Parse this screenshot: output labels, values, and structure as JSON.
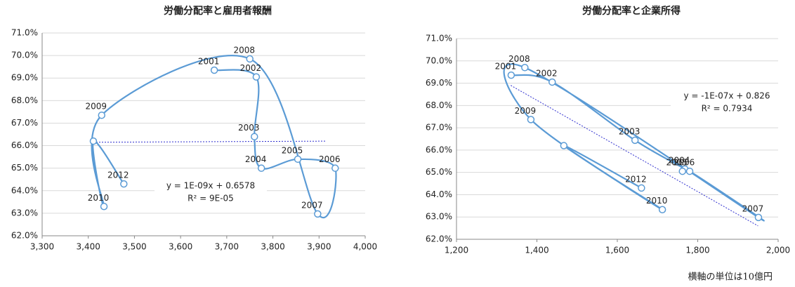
{
  "chart_data": [
    {
      "type": "scatter",
      "title": "労働分配率と雇用者報酬",
      "categories": [
        "2001",
        "2002",
        "2003",
        "2004",
        "2005",
        "2006",
        "2007",
        "2008",
        "2009",
        "2010",
        null,
        "2012"
      ],
      "x": [
        3673,
        3764,
        3760,
        3775,
        3854,
        3935,
        3897,
        3750,
        3429,
        3434,
        3411,
        3477
      ],
      "values": [
        69.35,
        69.05,
        66.4,
        65.0,
        65.4,
        65.0,
        62.97,
        69.85,
        67.35,
        63.3,
        66.2,
        64.3
      ],
      "color": "#5b9bd5",
      "trendline": {
        "x": [
          3405,
          3915
        ],
        "values": [
          66.15,
          66.2
        ],
        "color": "#2f2fcf"
      },
      "annotations": [
        "y = 1E-09x + 0.6578",
        "R² = 9E-05"
      ],
      "xlim": [
        3300,
        4000
      ],
      "xticks": [
        {
          "value": 3300,
          "label": "3,300"
        },
        {
          "value": 3400,
          "label": "3,400"
        },
        {
          "value": 3500,
          "label": "3,500"
        },
        {
          "value": 3600,
          "label": "3,600"
        },
        {
          "value": 3700,
          "label": "3,700"
        },
        {
          "value": 3800,
          "label": "3,800"
        },
        {
          "value": 3900,
          "label": "3,900"
        },
        {
          "value": 4000,
          "label": "4,000"
        }
      ],
      "ylim": [
        62,
        71
      ],
      "yticks": [
        {
          "value": 62,
          "label": "62.0%"
        },
        {
          "value": 63,
          "label": "63.0%"
        },
        {
          "value": 64,
          "label": "64.0%"
        },
        {
          "value": 65,
          "label": "65.0%"
        },
        {
          "value": 66,
          "label": "66.0%"
        },
        {
          "value": 67,
          "label": "67.0%"
        },
        {
          "value": 68,
          "label": "68.0%"
        },
        {
          "value": 69,
          "label": "69.0%"
        },
        {
          "value": 70,
          "label": "70.0%"
        },
        {
          "value": 71,
          "label": "71.0%"
        }
      ],
      "grid": true
    },
    {
      "type": "scatter",
      "title": "労働分配率と企業所得",
      "categories": [
        "2001",
        "2002",
        "2003",
        "2004",
        "2005",
        "2006",
        "2007",
        "2008",
        "2009",
        "2010",
        null,
        "2012"
      ],
      "x": [
        1336,
        1438,
        1644,
        1768,
        1762,
        1780,
        1951,
        1370,
        1385,
        1712,
        1467,
        1660
      ],
      "values": [
        69.36,
        69.05,
        66.44,
        65.15,
        65.05,
        65.05,
        62.98,
        69.7,
        67.37,
        63.33,
        66.2,
        64.3
      ],
      "color": "#5b9bd5",
      "trendline": {
        "x": [
          1335,
          1950
        ],
        "values": [
          68.9,
          62.6
        ],
        "color": "#2f2fcf"
      },
      "annotations": [
        "y = -1E-07x + 0.826",
        "R² = 0.7934"
      ],
      "xlim": [
        1200,
        2000
      ],
      "xticks": [
        {
          "value": 1200,
          "label": "1,200"
        },
        {
          "value": 1400,
          "label": "1,400"
        },
        {
          "value": 1600,
          "label": "1,600"
        },
        {
          "value": 1800,
          "label": "1,800"
        },
        {
          "value": 2000,
          "label": "2,000"
        }
      ],
      "ylim": [
        62,
        71
      ],
      "yticks": [
        {
          "value": 62,
          "label": "62.0%"
        },
        {
          "value": 63,
          "label": "63.0%"
        },
        {
          "value": 64,
          "label": "64.0%"
        },
        {
          "value": 65,
          "label": "65.0%"
        },
        {
          "value": 66,
          "label": "66.0%"
        },
        {
          "value": 67,
          "label": "67.0%"
        },
        {
          "value": 68,
          "label": "68.0%"
        },
        {
          "value": 69,
          "label": "69.0%"
        },
        {
          "value": 70,
          "label": "70.0%"
        },
        {
          "value": 71,
          "label": "71.0%"
        }
      ],
      "grid": true
    }
  ],
  "note": "横軸の単位は10億円"
}
